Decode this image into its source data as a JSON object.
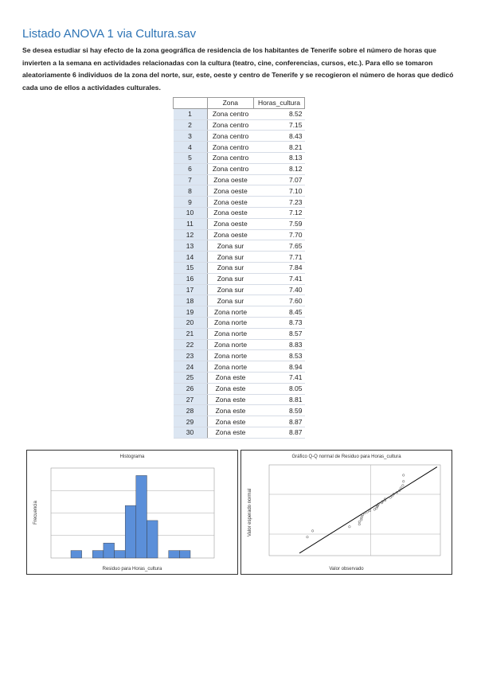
{
  "header": {
    "title": "Listado ANOVA 1 via Cultura.sav"
  },
  "intro": "Se desea estudiar si hay efecto de la zona geográfica de residencia de los habitantes de Tenerife sobre el número de horas que invierten a la semana en actividades relacionadas con la cultura (teatro, cine, conferencias, cursos, etc.). Para ello se tomaron aleatoriamente 6 individuos de la zona del norte, sur, este, oeste y centro de Tenerife y se recogieron el número de horas que dedicó cada uno de ellos a actividades culturales.",
  "table": {
    "columns": [
      "Zona",
      "Horas_cultura"
    ],
    "rows": [
      [
        1,
        "Zona centro",
        "8.52"
      ],
      [
        2,
        "Zona centro",
        "7.15"
      ],
      [
        3,
        "Zona centro",
        "8.43"
      ],
      [
        4,
        "Zona centro",
        "8.21"
      ],
      [
        5,
        "Zona centro",
        "8.13"
      ],
      [
        6,
        "Zona centro",
        "8.12"
      ],
      [
        7,
        "Zona oeste",
        "7.07"
      ],
      [
        8,
        "Zona oeste",
        "7.10"
      ],
      [
        9,
        "Zona oeste",
        "7.23"
      ],
      [
        10,
        "Zona oeste",
        "7.12"
      ],
      [
        11,
        "Zona oeste",
        "7.59"
      ],
      [
        12,
        "Zona oeste",
        "7.70"
      ],
      [
        13,
        "Zona sur",
        "7.65"
      ],
      [
        14,
        "Zona sur",
        "7.71"
      ],
      [
        15,
        "Zona sur",
        "7.84"
      ],
      [
        16,
        "Zona sur",
        "7.41"
      ],
      [
        17,
        "Zona sur",
        "7.40"
      ],
      [
        18,
        "Zona sur",
        "7.60"
      ],
      [
        19,
        "Zona norte",
        "8.45"
      ],
      [
        20,
        "Zona norte",
        "8.73"
      ],
      [
        21,
        "Zona norte",
        "8.57"
      ],
      [
        22,
        "Zona norte",
        "8.83"
      ],
      [
        23,
        "Zona norte",
        "8.53"
      ],
      [
        24,
        "Zona norte",
        "8.94"
      ],
      [
        25,
        "Zona este",
        "7.41"
      ],
      [
        26,
        "Zona este",
        "8.05"
      ],
      [
        27,
        "Zona este",
        "8.81"
      ],
      [
        28,
        "Zona este",
        "8.59"
      ],
      [
        29,
        "Zona este",
        "8.87"
      ],
      [
        30,
        "Zona este",
        "8.87"
      ]
    ]
  },
  "charts": [
    {
      "type": "histogram",
      "title": "Histograma",
      "x_label": "Residuo para Horas_cultura",
      "y_label": "Frecuencia",
      "color": "#5b8fd9",
      "counts": [
        1,
        0,
        1,
        2,
        1,
        7,
        11,
        5,
        0,
        1,
        1
      ],
      "ylim": [
        0,
        12
      ]
    },
    {
      "type": "qq",
      "title": "Gráfico Q-Q normal de Residuo para Horas_cultura",
      "x_label": "Valor observado",
      "y_label": "Valor esperado normal",
      "observed": [
        -1.02,
        -0.94,
        -0.38,
        -0.23,
        -0.23,
        -0.2,
        -0.2,
        -0.19,
        -0.18,
        -0.15,
        -0.11,
        -0.07,
        0,
        0.03,
        0.04,
        0.05,
        0.06,
        0.11,
        0.12,
        0.16,
        0.16,
        0.24,
        0.27,
        0.29,
        0.34,
        0.38,
        0.4,
        0.43,
        0.44,
        0.44
      ],
      "expected": [
        -0.75,
        -0.6,
        -0.5,
        -0.44,
        -0.38,
        -0.33,
        -0.29,
        -0.25,
        -0.21,
        -0.17,
        -0.14,
        -0.11,
        -0.08,
        -0.05,
        -0.01,
        0.01,
        0.05,
        0.08,
        0.11,
        0.14,
        0.17,
        0.21,
        0.25,
        0.29,
        0.33,
        0.38,
        0.44,
        0.5,
        0.6,
        0.75
      ],
      "xlim": [
        -1.6,
        1.0
      ],
      "ylim": [
        -1.2,
        1.0
      ]
    }
  ]
}
